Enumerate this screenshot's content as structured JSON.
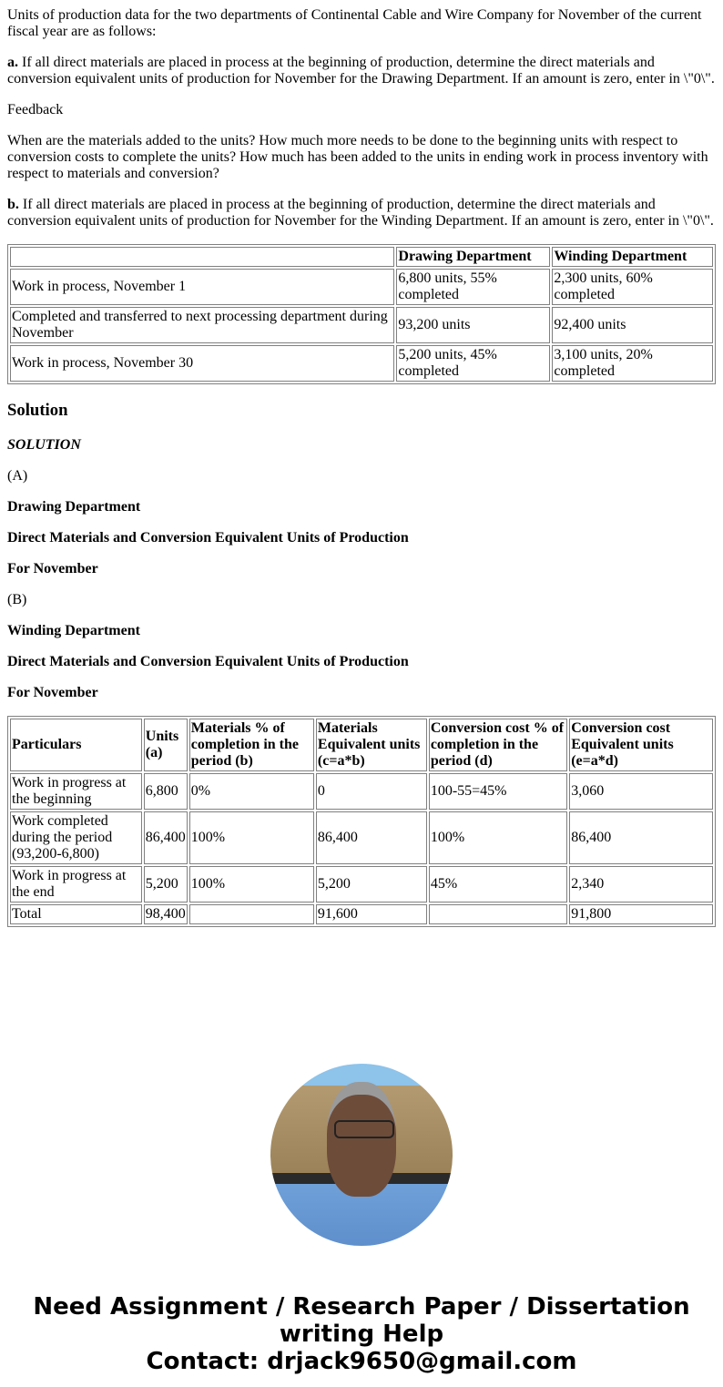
{
  "intro": "Units of production data for the two departments of Continental Cable and Wire Company for November of the current fiscal year are as follows:",
  "part_a": {
    "label": "a.",
    "text": " If all direct materials are placed in process at the beginning of production, determine the direct materials and conversion equivalent units of production for November for the Drawing Department. If an amount is zero, enter in \\\"0\\\"."
  },
  "feedback_label": "Feedback",
  "feedback_text": "When are the materials added to the units? How much more needs to be done to the beginning units with respect to conversion costs to complete the units? How much has been added to the units in ending work in process inventory with respect to materials and conversion?",
  "part_b": {
    "label": "b.",
    "text": " If all direct materials are placed in process at the beginning of production, determine the direct materials and conversion equivalent units of production for November for the Winding Department. If an amount is zero, enter in \\\"0\\\"."
  },
  "data_table": {
    "headers": [
      "",
      "Drawing Department",
      "Winding Department"
    ],
    "rows": [
      [
        "Work in process, November 1",
        "6,800 units, 55% completed",
        "2,300 units, 60% completed"
      ],
      [
        "Completed and transferred to next processing department during November",
        "93,200 units",
        "92,400 units"
      ],
      [
        "Work in process, November 30",
        "5,200 units, 45% completed",
        "3,100 units, 20% completed"
      ]
    ]
  },
  "solution_heading": "Solution",
  "solution_label": "SOLUTION",
  "section_a": {
    "marker": "(A)",
    "dept": "Drawing Department",
    "title": "Direct Materials and Conversion Equivalent Units of Production",
    "period": "For November"
  },
  "section_b": {
    "marker": "(B)",
    "dept": "Winding Department",
    "title": "Direct Materials and Conversion Equivalent Units of Production",
    "period": "For November"
  },
  "solution_table": {
    "headers": [
      "Particulars",
      "Units (a)",
      "Materials % of completion in the period (b)",
      "Materials Equivalent units (c=a*b)",
      "Conversion cost % of completion in the period (d)",
      "Conversion cost Equivalent units (e=a*d)"
    ],
    "rows": [
      [
        "Work in progress at the beginning",
        "6,800",
        "0%",
        "0",
        "100-55=45%",
        "3,060"
      ],
      [
        "Work completed during the period (93,200-6,800)",
        "86,400",
        "100%",
        "86,400",
        "100%",
        "86,400"
      ],
      [
        "Work in progress at the end",
        "5,200",
        "100%",
        "5,200",
        "45%",
        "2,340"
      ],
      [
        "Total",
        "98,400",
        "",
        "91,600",
        "",
        "91,800"
      ]
    ]
  },
  "footer": {
    "line1": "Need Assignment / Research Paper / Dissertation writing Help",
    "line2": "Contact: drjack9650@gmail.com"
  }
}
